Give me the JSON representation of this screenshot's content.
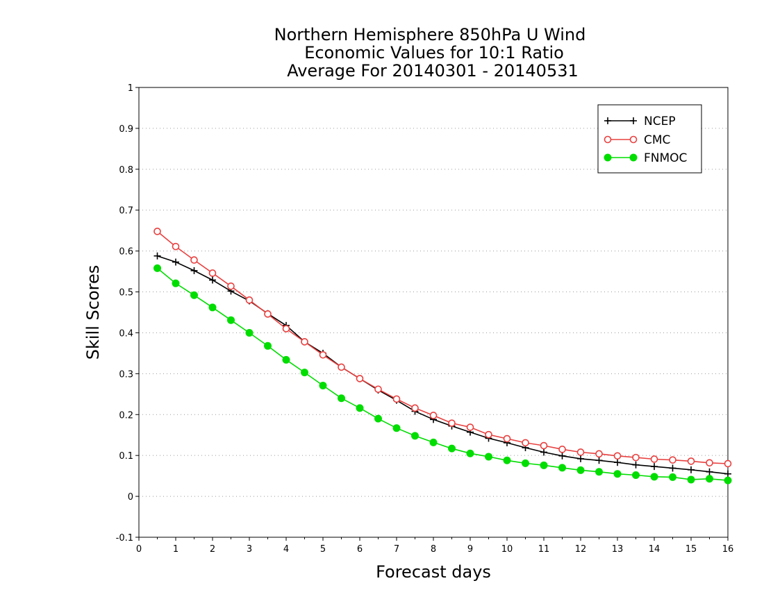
{
  "chart_data": {
    "type": "line",
    "title": [
      "Northern Hemisphere 850hPa U Wind",
      "Economic Values for 10:1 Ratio",
      "Average For 20140301 - 20140531"
    ],
    "xlabel": "Forecast days",
    "ylabel": "Skill Scores",
    "xlim": [
      0,
      16
    ],
    "ylim": [
      -0.1,
      1
    ],
    "xticks": [
      0,
      1,
      2,
      3,
      4,
      5,
      6,
      7,
      8,
      9,
      10,
      11,
      12,
      13,
      14,
      15,
      16
    ],
    "xtick_labels": [
      "0",
      "1",
      "2",
      "3",
      "4",
      "5",
      "6",
      "7",
      "8",
      "9",
      "10",
      "11",
      "12",
      "13",
      "14",
      "15",
      "16"
    ],
    "yticks": [
      -0.1,
      0,
      0.1,
      0.2,
      0.3,
      0.4,
      0.5,
      0.6,
      0.7,
      0.8,
      0.9,
      1
    ],
    "ytick_labels": [
      "-0.1",
      "0",
      "0.1",
      "0.2",
      "0.3",
      "0.4",
      "0.5",
      "0.6",
      "0.7",
      "0.8",
      "0.9",
      "1"
    ],
    "grid": "horizontal dotted",
    "legend_position": "top-right",
    "x": [
      0.5,
      1,
      1.5,
      2,
      2.5,
      3,
      3.5,
      4,
      4.5,
      5,
      5.5,
      6,
      6.5,
      7,
      7.5,
      8,
      8.5,
      9,
      9.5,
      10,
      10.5,
      11,
      11.5,
      12,
      12.5,
      13,
      13.5,
      14,
      14.5,
      15,
      15.5,
      16
    ],
    "series": [
      {
        "name": "NCEP",
        "color": "#000000",
        "marker": "plus",
        "values": [
          0.588,
          0.573,
          0.552,
          0.529,
          0.502,
          0.478,
          0.447,
          0.418,
          0.378,
          0.35,
          0.316,
          0.288,
          0.26,
          0.235,
          0.208,
          0.188,
          0.172,
          0.157,
          0.142,
          0.131,
          0.119,
          0.108,
          0.099,
          0.092,
          0.088,
          0.083,
          0.077,
          0.073,
          0.069,
          0.065,
          0.06,
          0.055
        ]
      },
      {
        "name": "CMC",
        "color": "#e8403f",
        "marker": "open-circle",
        "values": [
          0.648,
          0.611,
          0.578,
          0.546,
          0.514,
          0.48,
          0.446,
          0.41,
          0.378,
          0.346,
          0.316,
          0.288,
          0.262,
          0.238,
          0.216,
          0.198,
          0.179,
          0.169,
          0.151,
          0.141,
          0.131,
          0.124,
          0.115,
          0.108,
          0.104,
          0.099,
          0.095,
          0.091,
          0.089,
          0.086,
          0.082,
          0.08
        ]
      },
      {
        "name": "FNMOC",
        "color": "#00dd00",
        "marker": "filled-circle",
        "values": [
          0.558,
          0.521,
          0.492,
          0.462,
          0.431,
          0.4,
          0.368,
          0.334,
          0.303,
          0.271,
          0.24,
          0.216,
          0.19,
          0.167,
          0.148,
          0.132,
          0.117,
          0.105,
          0.097,
          0.088,
          0.081,
          0.076,
          0.07,
          0.064,
          0.06,
          0.055,
          0.052,
          0.048,
          0.047,
          0.041,
          0.043,
          0.039
        ]
      }
    ]
  }
}
